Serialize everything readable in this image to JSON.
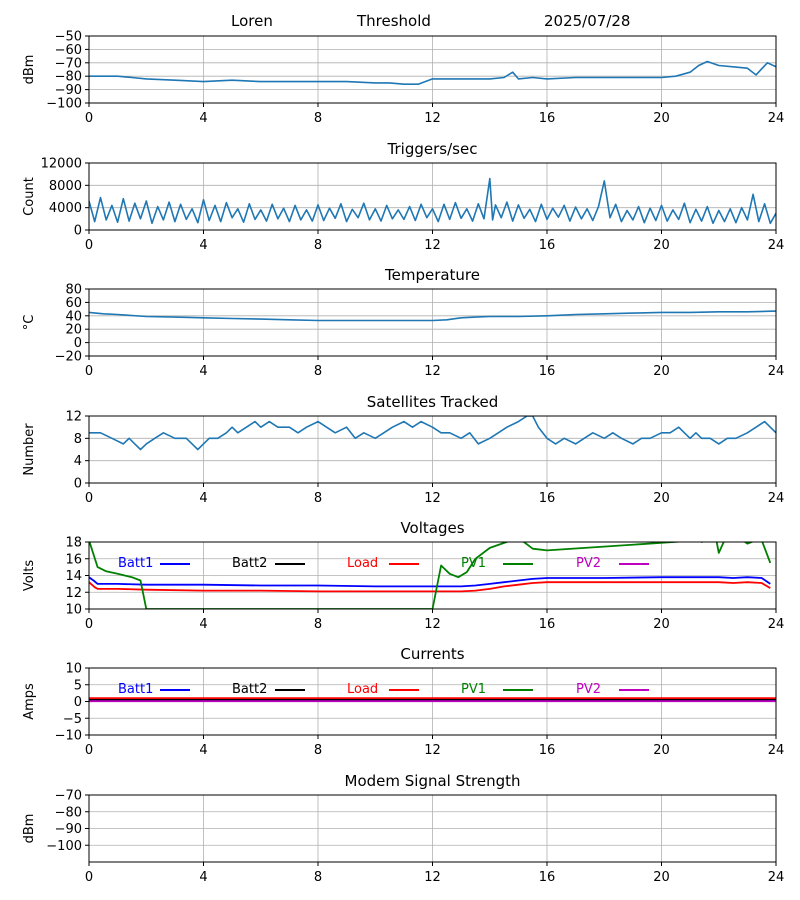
{
  "header": {
    "station": "Loren",
    "mode": "Threshold",
    "date": "2025/07/28"
  },
  "colors": {
    "default_line": "#1f77b4",
    "grid": "#b0b0b0",
    "batt1": "#0000ff",
    "batt2": "#000000",
    "load": "#ff0000",
    "pv1": "#008000",
    "pv2": "#bf00bf"
  },
  "chart_data": [
    {
      "type": "line",
      "title": "",
      "ylabel": "dBm",
      "xlim": [
        0,
        24
      ],
      "ylim": [
        -100,
        -50
      ],
      "xticks": [
        0,
        4,
        8,
        12,
        16,
        20,
        24
      ],
      "yticks": [
        -100,
        -90,
        -80,
        -70,
        -60,
        -50
      ],
      "grid": true,
      "series": [
        {
          "color_key": "default_line",
          "x": [
            0,
            1,
            1.5,
            2,
            3,
            4,
            5,
            6,
            7,
            8,
            9,
            10,
            10.5,
            11,
            11.5,
            12,
            12.5,
            13,
            14,
            14.5,
            14.8,
            15,
            15.5,
            16,
            17,
            18,
            19,
            20,
            20.5,
            21,
            21.3,
            21.6,
            22,
            22.5,
            23,
            23.3,
            23.7,
            24
          ],
          "y": [
            -80,
            -80,
            -81,
            -82,
            -83,
            -84,
            -83,
            -84,
            -84,
            -84,
            -84,
            -85,
            -85,
            -86,
            -86,
            -82,
            -82,
            -82,
            -82,
            -81,
            -77,
            -82,
            -81,
            -82,
            -81,
            -81,
            -81,
            -81,
            -80,
            -77,
            -72,
            -69,
            -72,
            -73,
            -74,
            -79,
            -70,
            -73
          ]
        }
      ]
    },
    {
      "type": "line",
      "title": "Triggers/sec",
      "ylabel": "Count",
      "xlim": [
        0,
        24
      ],
      "ylim": [
        0,
        12000
      ],
      "xticks": [
        0,
        4,
        8,
        12,
        16,
        20,
        24
      ],
      "yticks": [
        0,
        4000,
        8000,
        12000
      ],
      "grid": true,
      "series": [
        {
          "color_key": "default_line",
          "x": [
            0,
            0.2,
            0.4,
            0.6,
            0.8,
            1,
            1.2,
            1.4,
            1.6,
            1.8,
            2,
            2.2,
            2.4,
            2.6,
            2.8,
            3,
            3.2,
            3.4,
            3.6,
            3.8,
            4,
            4.2,
            4.4,
            4.6,
            4.8,
            5,
            5.2,
            5.4,
            5.6,
            5.8,
            6,
            6.2,
            6.4,
            6.6,
            6.8,
            7,
            7.2,
            7.4,
            7.6,
            7.8,
            8,
            8.2,
            8.4,
            8.6,
            8.8,
            9,
            9.2,
            9.4,
            9.6,
            9.8,
            10,
            10.2,
            10.4,
            10.6,
            10.8,
            11,
            11.2,
            11.4,
            11.6,
            11.8,
            12,
            12.2,
            12.4,
            12.6,
            12.8,
            13,
            13.2,
            13.4,
            13.6,
            13.8,
            14,
            14.1,
            14.2,
            14.4,
            14.6,
            14.8,
            15,
            15.2,
            15.4,
            15.6,
            15.8,
            16,
            16.2,
            16.4,
            16.6,
            16.8,
            17,
            17.2,
            17.4,
            17.6,
            17.8,
            18,
            18.2,
            18.4,
            18.6,
            18.8,
            19,
            19.2,
            19.4,
            19.6,
            19.8,
            20,
            20.2,
            20.4,
            20.6,
            20.8,
            21,
            21.2,
            21.4,
            21.6,
            21.8,
            22,
            22.2,
            22.4,
            22.6,
            22.8,
            23,
            23.2,
            23.4,
            23.6,
            23.8,
            24
          ],
          "y": [
            5200,
            1500,
            5800,
            1800,
            4400,
            1400,
            5600,
            1600,
            4800,
            2000,
            5200,
            1200,
            4200,
            1800,
            5000,
            1500,
            4600,
            1900,
            3800,
            1300,
            5400,
            1700,
            4400,
            1500,
            4900,
            2200,
            3800,
            1400,
            4700,
            1900,
            3600,
            1600,
            4600,
            2000,
            3900,
            1500,
            4400,
            1800,
            3600,
            1600,
            4500,
            1700,
            3900,
            2100,
            4700,
            1500,
            3700,
            2200,
            4800,
            1800,
            3800,
            1600,
            4400,
            2000,
            3600,
            1900,
            4200,
            1700,
            4600,
            2200,
            3800,
            1500,
            4600,
            1900,
            4900,
            2100,
            3800,
            1600,
            4700,
            2000,
            9200,
            1800,
            4500,
            2200,
            5000,
            1600,
            4500,
            2100,
            3700,
            1500,
            4600,
            1900,
            3900,
            2300,
            4400,
            1600,
            4100,
            2000,
            3800,
            1700,
            4200,
            8800,
            2200,
            4600,
            1500,
            3500,
            1800,
            4200,
            1300,
            3900,
            1700,
            4400,
            1600,
            3600,
            1900,
            4800,
            1300,
            3700,
            1600,
            4200,
            1200,
            3500,
            1500,
            3800,
            1300,
            4000,
            1800,
            6400,
            1500,
            4700,
            1200,
            3000
          ]
        }
      ]
    },
    {
      "type": "line",
      "title": "Temperature",
      "ylabel": "°C",
      "xlim": [
        0,
        24
      ],
      "ylim": [
        -20,
        80
      ],
      "xticks": [
        0,
        4,
        8,
        12,
        16,
        20,
        24
      ],
      "yticks": [
        -20,
        0,
        20,
        40,
        60,
        80
      ],
      "grid": true,
      "series": [
        {
          "color_key": "default_line",
          "x": [
            0,
            0.5,
            1,
            2,
            3,
            4,
            5,
            6,
            7,
            8,
            9,
            10,
            11,
            12,
            12.5,
            13,
            13.5,
            14,
            15,
            16,
            17,
            18,
            19,
            20,
            21,
            22,
            23,
            24
          ],
          "y": [
            45,
            43,
            42,
            39,
            38,
            37,
            36,
            35,
            34,
            33,
            33,
            33,
            33,
            33,
            34,
            37,
            38,
            39,
            39,
            40,
            42,
            43,
            44,
            45,
            45,
            46,
            46,
            47
          ]
        }
      ]
    },
    {
      "type": "line",
      "title": "Satellites Tracked",
      "ylabel": "Number",
      "xlim": [
        0,
        24
      ],
      "ylim": [
        0,
        12
      ],
      "xticks": [
        0,
        4,
        8,
        12,
        16,
        20,
        24
      ],
      "yticks": [
        0,
        4,
        8,
        12
      ],
      "grid": true,
      "series": [
        {
          "color_key": "default_line",
          "x": [
            0,
            0.4,
            0.8,
            1.2,
            1.4,
            1.6,
            1.8,
            2,
            2.3,
            2.6,
            3,
            3.4,
            3.6,
            3.8,
            4,
            4.2,
            4.5,
            4.8,
            5,
            5.2,
            5.5,
            5.8,
            6,
            6.3,
            6.6,
            7,
            7.3,
            7.6,
            8,
            8.3,
            8.6,
            9,
            9.3,
            9.6,
            10,
            10.3,
            10.6,
            11,
            11.3,
            11.6,
            12,
            12.3,
            12.6,
            13,
            13.3,
            13.6,
            14,
            14.3,
            14.6,
            15,
            15.3,
            15.5,
            15.7,
            16,
            16.3,
            16.6,
            17,
            17.3,
            17.6,
            18,
            18.3,
            18.6,
            19,
            19.3,
            19.6,
            20,
            20.3,
            20.6,
            20.8,
            21,
            21.2,
            21.4,
            21.7,
            22,
            22.3,
            22.6,
            23,
            23.3,
            23.6,
            24
          ],
          "y": [
            9,
            9,
            8,
            7,
            8,
            7,
            6,
            7,
            8,
            9,
            8,
            8,
            7,
            6,
            7,
            8,
            8,
            9,
            10,
            9,
            10,
            11,
            10,
            11,
            10,
            10,
            9,
            10,
            11,
            10,
            9,
            10,
            8,
            9,
            8,
            9,
            10,
            11,
            10,
            11,
            10,
            9,
            9,
            8,
            9,
            7,
            8,
            9,
            10,
            11,
            12,
            12,
            10,
            8,
            7,
            8,
            7,
            8,
            9,
            8,
            9,
            8,
            7,
            8,
            8,
            9,
            9,
            10,
            9,
            8,
            9,
            8,
            8,
            7,
            8,
            8,
            9,
            10,
            11,
            9
          ]
        }
      ]
    },
    {
      "type": "line",
      "title": "Voltages",
      "ylabel": "Volts",
      "xlim": [
        0,
        24
      ],
      "ylim": [
        10,
        18
      ],
      "xticks": [
        0,
        4,
        8,
        12,
        16,
        20,
        24
      ],
      "yticks": [
        10,
        12,
        14,
        16,
        18
      ],
      "grid": true,
      "legend": "top",
      "series": [
        {
          "name": "Batt1",
          "color_key": "batt1",
          "x": [
            0,
            0.2,
            0.3,
            1,
            2,
            4,
            6,
            8,
            10,
            12,
            13,
            13.5,
            14,
            14.5,
            15,
            15.5,
            16,
            18,
            20,
            21,
            22,
            22.5,
            23,
            23.5,
            23.8
          ],
          "y": [
            13.8,
            13.3,
            13,
            13,
            12.9,
            12.9,
            12.8,
            12.8,
            12.7,
            12.7,
            12.7,
            12.8,
            13,
            13.2,
            13.4,
            13.6,
            13.7,
            13.7,
            13.8,
            13.8,
            13.8,
            13.7,
            13.8,
            13.7,
            13.0
          ]
        },
        {
          "name": "Batt2",
          "color_key": "batt2",
          "x": [],
          "y": []
        },
        {
          "name": "Load",
          "color_key": "load",
          "x": [
            0,
            0.2,
            0.3,
            1,
            2,
            4,
            6,
            8,
            10,
            12,
            13,
            13.5,
            14,
            14.5,
            15,
            15.5,
            16,
            18,
            20,
            21,
            22,
            22.5,
            23,
            23.5,
            23.8
          ],
          "y": [
            13.2,
            12.6,
            12.4,
            12.4,
            12.3,
            12.2,
            12.2,
            12.1,
            12.1,
            12.1,
            12.1,
            12.2,
            12.4,
            12.7,
            12.9,
            13.1,
            13.2,
            13.2,
            13.2,
            13.2,
            13.2,
            13.1,
            13.2,
            13.1,
            12.5
          ]
        },
        {
          "name": "PV1",
          "color_key": "pv1",
          "x": [
            0,
            0.3,
            0.6,
            1,
            1.5,
            1.8,
            2,
            12,
            12.3,
            12.6,
            12.9,
            13.2,
            13.5,
            14,
            15,
            15.5,
            16,
            21.3,
            21.4,
            21.9,
            22,
            22.2,
            22.8,
            23,
            23.3,
            23.5,
            23.8
          ],
          "y": [
            18.2,
            15,
            14.5,
            14.2,
            13.8,
            13.4,
            10,
            10,
            15.2,
            14.2,
            13.8,
            14.4,
            16,
            17.3,
            18.5,
            17.2,
            17,
            18.2,
            18,
            18.5,
            16.7,
            18.2,
            18.3,
            17.8,
            18.2,
            18.2,
            15.5
          ]
        },
        {
          "name": "PV2",
          "color_key": "pv2",
          "x": [],
          "y": []
        }
      ]
    },
    {
      "type": "line",
      "title": "Currents",
      "ylabel": "Amps",
      "xlim": [
        0,
        24
      ],
      "ylim": [
        -10,
        10
      ],
      "xticks": [
        0,
        4,
        8,
        12,
        16,
        20,
        24
      ],
      "yticks": [
        -10,
        -5,
        0,
        5,
        10
      ],
      "grid": true,
      "legend": "top",
      "series": [
        {
          "name": "Batt1",
          "color_key": "batt1",
          "x": [
            0,
            24
          ],
          "y": [
            0.4,
            0.4
          ]
        },
        {
          "name": "Batt2",
          "color_key": "batt2",
          "x": [
            0,
            24
          ],
          "y": [
            0.6,
            0.6
          ]
        },
        {
          "name": "Load",
          "color_key": "load",
          "x": [
            0,
            24
          ],
          "y": [
            1.0,
            1.0
          ]
        },
        {
          "name": "PV1",
          "color_key": "pv1",
          "x": [],
          "y": []
        },
        {
          "name": "PV2",
          "color_key": "pv2",
          "x": [
            0,
            24
          ],
          "y": [
            0.1,
            0.1
          ]
        }
      ]
    },
    {
      "type": "line",
      "title": "Modem Signal Strength",
      "ylabel": "dBm",
      "xlim": [
        0,
        24
      ],
      "ylim": [
        -110,
        -70
      ],
      "xticks": [
        0,
        4,
        8,
        12,
        16,
        20,
        24
      ],
      "yticks": [
        -100,
        -90,
        -80,
        -70
      ],
      "grid": true,
      "series": []
    }
  ]
}
